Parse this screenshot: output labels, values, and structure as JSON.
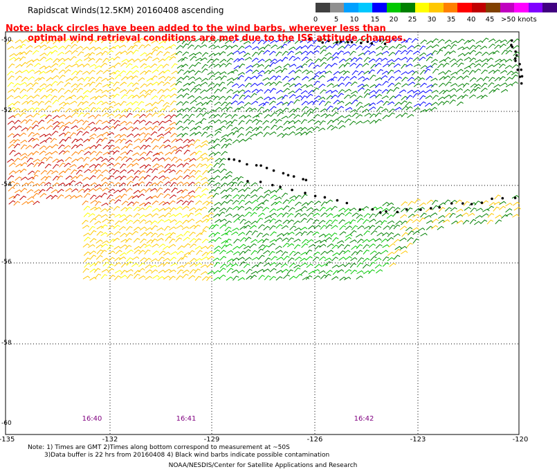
{
  "title": "Rapidscat Winds(12.5KM) 20160408 ascending",
  "notes": {
    "line1": "Note: black circles have been added to the wind barbs, wherever less than",
    "line2": "optimal wind retrieval conditions are met due to the ISS attitude changes."
  },
  "legend": {
    "colors": [
      "#404040",
      "#909090",
      "#00a0ff",
      "#00c8ff",
      "#0000ff",
      "#00c800",
      "#008000",
      "#ffff00",
      "#ffc800",
      "#ff8000",
      "#ff0000",
      "#c00000",
      "#804000",
      "#c000c0",
      "#ff00ff",
      "#8000ff",
      "#400080"
    ],
    "ticks": [
      "0",
      "5",
      "10",
      "15",
      "20",
      "25",
      "30",
      "35",
      "40",
      "45",
      ">50 knots"
    ]
  },
  "axes": {
    "lat_labels": [
      "-50",
      "-52",
      "-54",
      "-56",
      "-58",
      "-60"
    ],
    "lon_labels": [
      "-135",
      "-132",
      "-129",
      "-126",
      "-123",
      "-120"
    ],
    "time_labels": [
      "16:40",
      "16:41",
      "16:42"
    ]
  },
  "footer": {
    "line1": "Note: 1) Times are GMT 2)Times along bottom correspond to measurement at ~50S",
    "line2": "3)Data buffer is 22 hrs from 20160408 4) Black wind barbs indicate possible contamination",
    "credit": "NOAA/NESDIS/Center for Satellite Applications and Research"
  }
}
